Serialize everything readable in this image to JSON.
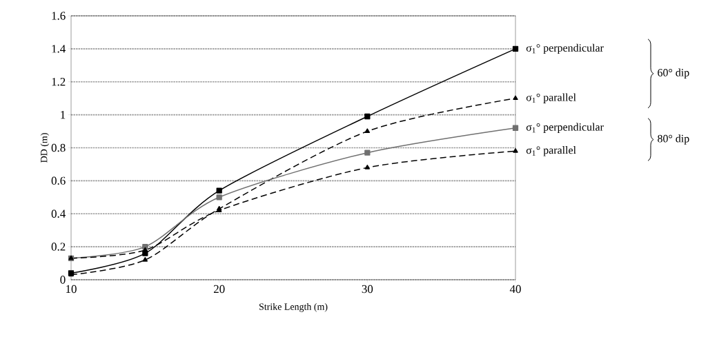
{
  "chart_data": {
    "type": "line",
    "xlabel": "Strike Length (m)",
    "ylabel": "DD (m)",
    "x": [
      10,
      15,
      20,
      30,
      40
    ],
    "series": [
      {
        "name": "σ$_{1}$° perpendicular",
        "color": "#000000",
        "marker": "square",
        "line_style": "solid",
        "values": [
          0.04,
          0.16,
          0.54,
          0.99,
          1.4
        ]
      },
      {
        "name": "σ$_{1}$° parallel",
        "color": "#000000",
        "marker": "triangle",
        "line_style": "dashed",
        "values": [
          0.03,
          0.12,
          0.43,
          0.9,
          1.1
        ]
      },
      {
        "name": "σ$_{1}$° perpendicular",
        "color": "#707070",
        "marker": "square",
        "line_style": "solid",
        "values": [
          0.13,
          0.2,
          0.5,
          0.77,
          0.92
        ]
      },
      {
        "name": "σ$_{1}$° parallel",
        "color": "#000000",
        "marker": "triangle",
        "line_style": "dashed",
        "values": [
          0.13,
          0.18,
          0.42,
          0.68,
          0.78
        ]
      }
    ],
    "annotations": [
      "60° dip",
      "80° dip"
    ],
    "xlim": [
      10,
      40
    ],
    "xticks": [
      10,
      20,
      30,
      40
    ],
    "ylim": [
      0,
      1.6
    ],
    "yticks": [
      0,
      0.2,
      0.4,
      0.6,
      0.8,
      1,
      1.2,
      1.4,
      1.6
    ],
    "grid": "y"
  }
}
